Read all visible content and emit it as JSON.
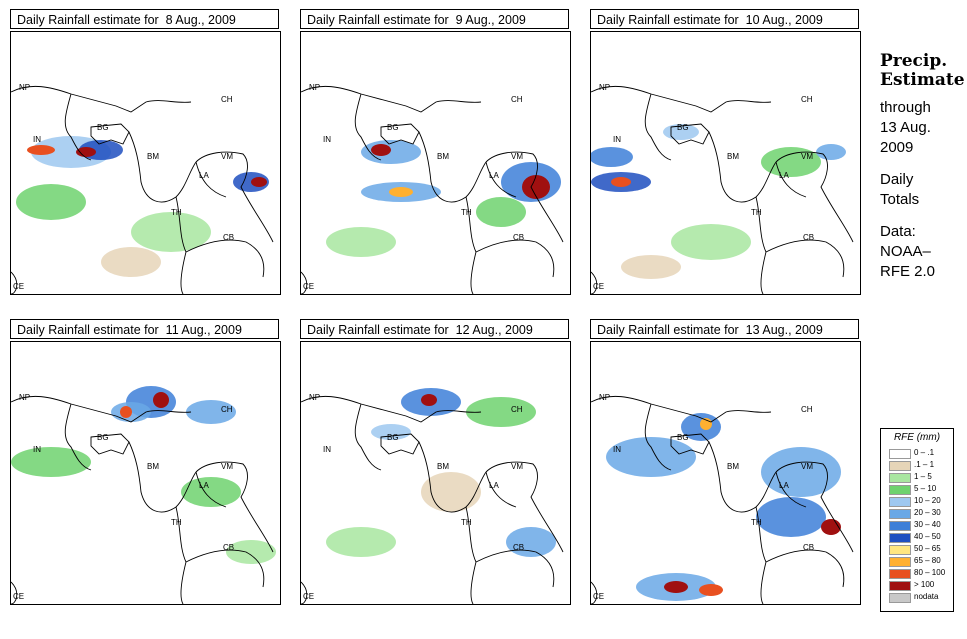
{
  "panels": [
    {
      "title": "Daily Rainfall estimate for  8 Aug., 2009"
    },
    {
      "title": "Daily Rainfall estimate for  9 Aug., 2009"
    },
    {
      "title": "Daily Rainfall estimate for  10 Aug., 2009"
    },
    {
      "title": "Daily Rainfall estimate for  11 Aug., 2009"
    },
    {
      "title": "Daily Rainfall estimate for  12 Aug., 2009"
    },
    {
      "title": "Daily Rainfall estimate for  13 Aug., 2009"
    }
  ],
  "country_labels": [
    "NP",
    "CH",
    "IN",
    "BG",
    "BM",
    "VM",
    "LA",
    "TH",
    "CB",
    "CE"
  ],
  "side": {
    "title_line1": "Precip.",
    "title_line2": "Estimate",
    "through": "through",
    "date_line1": "13 Aug.",
    "date_line2": "2009",
    "daily": "Daily",
    "totals": "Totals",
    "data_label": "Data:",
    "source_line1": "NOAA–",
    "source_line2": "RFE 2.0"
  },
  "legend": {
    "title": "RFE (mm)",
    "items": [
      {
        "label": "0 – .1",
        "color": "#ffffff"
      },
      {
        "label": ".1 – 1",
        "color": "#e6d5b8"
      },
      {
        "label": "1 – 5",
        "color": "#a8e6a0"
      },
      {
        "label": "5 – 10",
        "color": "#6ed26e"
      },
      {
        "label": "10 – 20",
        "color": "#9ec8f0"
      },
      {
        "label": "20 – 30",
        "color": "#6aa8e6"
      },
      {
        "label": "30 – 40",
        "color": "#3d7fd8"
      },
      {
        "label": "40 – 50",
        "color": "#1f4fc0"
      },
      {
        "label": "50 – 65",
        "color": "#ffe680"
      },
      {
        "label": "65 – 80",
        "color": "#ffb030"
      },
      {
        "label": "80 – 100",
        "color": "#e85020"
      },
      {
        "label": "> 100",
        "color": "#a01010"
      },
      {
        "label": "nodata",
        "color": "#c8c8c8"
      }
    ]
  },
  "colors": {
    "land": "#ffffff",
    "border": "#000000"
  }
}
